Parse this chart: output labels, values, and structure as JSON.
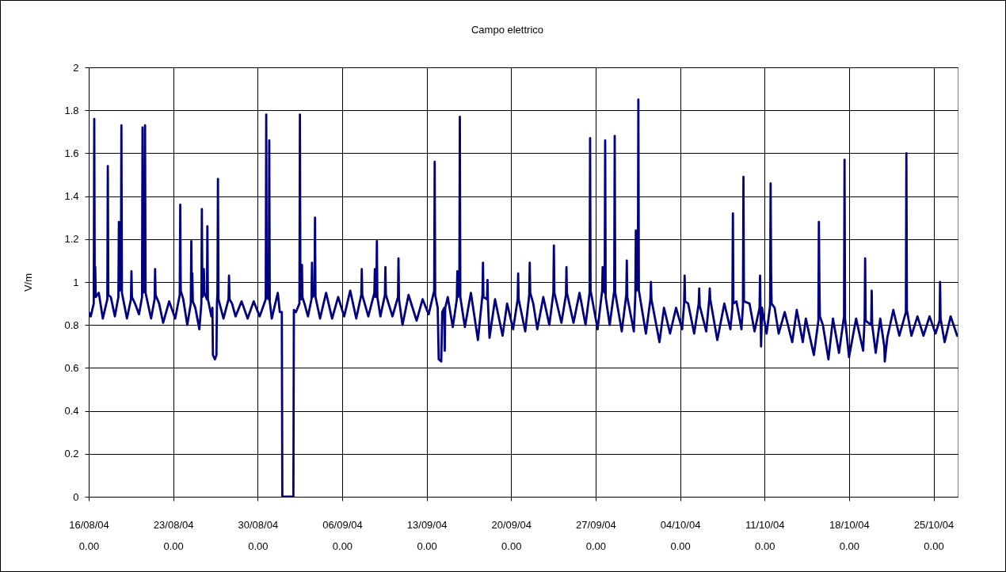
{
  "chart_data": {
    "type": "line",
    "title": "Campo elettrico",
    "ylabel": "V/m",
    "color": "#000080",
    "grid": true,
    "xlim": [
      "--08-16",
      "--10-27"
    ],
    "xticks": [
      {
        "value": "--08-16",
        "label": "16/08/04\n0.00"
      },
      {
        "value": "--08-23",
        "label": "23/08/04\n0.00"
      },
      {
        "value": "--08-30",
        "label": "30/08/04\n0.00"
      },
      {
        "value": "--09-06",
        "label": "06/09/04\n0.00"
      },
      {
        "value": "--09-13",
        "label": "13/09/04\n0.00"
      },
      {
        "value": "--09-20",
        "label": "20/09/04\n0.00"
      },
      {
        "value": "--09-27",
        "label": "27/09/04\n0.00"
      },
      {
        "value": "--10-04",
        "label": "04/10/04\n0.00"
      },
      {
        "value": "--10-11",
        "label": "11/10/04\n0.00"
      },
      {
        "value": "--10-18",
        "label": "18/10/04\n0.00"
      },
      {
        "value": "--10-25",
        "label": "25/10/04\n0.00"
      }
    ],
    "ylim": [
      0,
      2
    ],
    "yticks": [
      0,
      0.2,
      0.4,
      0.6,
      0.8,
      1,
      1.2,
      1.4,
      1.6,
      1.8,
      2
    ],
    "x": [
      "--08-16T00:00",
      "--08-16T04:00",
      "--08-16T10:00",
      "--08-16T11:00",
      "--08-16T12:00",
      "--08-16T13:00",
      "--08-16T14:00",
      "--08-16T20:00",
      "--08-17T04:00",
      "--08-17T13:00",
      "--08-17T14:00",
      "--08-17T15:00",
      "--08-17T20:00",
      "--08-18T04:00",
      "--08-18T11:00",
      "--08-18T12:00",
      "--08-18T13:00",
      "--08-18T16:00",
      "--08-18T17:00",
      "--08-18T18:00",
      "--08-19T04:00",
      "--08-19T12:00",
      "--08-19T13:00",
      "--08-19T14:00",
      "--08-19T20:00",
      "--08-20T04:00",
      "--08-20T10:00",
      "--08-20T11:00",
      "--08-20T12:00",
      "--08-20T15:00",
      "--08-20T16:00",
      "--08-20T17:00",
      "--08-21T04:00",
      "--08-21T11:00",
      "--08-21T12:00",
      "--08-21T13:00",
      "--08-21T20:00",
      "--08-22T04:00",
      "--08-22T16:00",
      "--08-23T04:00",
      "--08-23T13:00",
      "--08-23T14:00",
      "--08-23T15:00",
      "--08-23T20:00",
      "--08-24T04:00",
      "--08-24T11:00",
      "--08-24T12:00",
      "--08-24T13:00",
      "--08-24T14:00",
      "--08-24T15:00",
      "--08-24T20:00",
      "--08-25T04:00",
      "--08-25T08:00",
      "--08-25T09:00",
      "--08-25T10:00",
      "--08-25T12:00",
      "--08-25T13:00",
      "--08-25T14:00",
      "--08-25T19:00",
      "--08-25T20:00",
      "--08-25T21:00",
      "--08-26T04:00",
      "--08-26T06:00",
      "--08-26T07:00",
      "--08-26T11:00",
      "--08-26T14:00",
      "--08-26T15:00",
      "--08-26T16:00",
      "--08-26T17:00",
      "--08-26T18:00",
      "--08-27T04:00",
      "--08-27T14:00",
      "--08-27T15:00",
      "--08-27T16:00",
      "--08-27T21:00",
      "--08-28T04:00",
      "--08-28T16:00",
      "--08-29T04:00",
      "--08-29T16:00",
      "--08-30T04:00",
      "--08-30T16:00",
      "--08-30T17:00",
      "--08-30T18:00",
      "--08-30T22:00",
      "--08-30T23:00",
      "--08-31T00:00",
      "--08-31T04:00",
      "--08-31T16:00",
      "--08-31T20:00",
      "--09-01T00:00",
      "--09-01T01:00",
      "--09-01T23:00",
      "--09-02T00:00",
      "--09-02T04:00",
      "--09-02T11:00",
      "--09-02T12:00",
      "--09-02T13:00",
      "--09-02T15:00",
      "--09-02T16:00",
      "--09-02T17:00",
      "--09-02T21:00",
      "--09-03T04:00",
      "--09-03T11:00",
      "--09-03T12:00",
      "--09-03T13:00",
      "--09-03T17:00",
      "--09-03T18:00",
      "--09-03T19:00",
      "--09-04T04:00",
      "--09-04T16:00",
      "--09-05T04:00",
      "--09-05T16:00",
      "--09-06T04:00",
      "--09-06T16:00",
      "--09-07T04:00",
      "--09-07T14:00",
      "--09-07T15:00",
      "--09-07T16:00",
      "--09-08T04:00",
      "--09-08T16:00",
      "--09-08T17:00",
      "--09-08T18:00",
      "--09-08T20:00",
      "--09-08T21:00",
      "--09-08T22:00",
      "--09-09T04:00",
      "--09-09T13:00",
      "--09-09T14:00",
      "--09-09T15:00",
      "--09-10T04:00",
      "--09-10T15:00",
      "--09-10T16:00",
      "--09-10T17:00",
      "--09-11T00:00",
      "--09-11T12:00",
      "--09-12T04:00",
      "--09-12T16:00",
      "--09-13T04:00",
      "--09-13T15:00",
      "--09-13T16:00",
      "--09-13T17:00",
      "--09-13T22:00",
      "--09-14T00:00",
      "--09-14T05:00",
      "--09-14T07:00",
      "--09-14T11:00",
      "--09-14T12:00",
      "--09-14T13:00",
      "--09-14T18:00",
      "--09-15T04:00",
      "--09-15T12:00",
      "--09-15T13:00",
      "--09-15T14:00",
      "--09-15T17:00",
      "--09-15T18:00",
      "--09-15T19:00",
      "--09-16T04:00",
      "--09-16T16:00",
      "--09-17T06:00",
      "--09-17T15:00",
      "--09-17T16:00",
      "--09-17T17:00",
      "--09-18T00:00",
      "--09-18T01:00",
      "--09-18T02:00",
      "--09-18T05:00",
      "--09-18T16:00",
      "--09-19T07:00",
      "--09-19T16:00",
      "--09-20T04:00",
      "--09-20T13:00",
      "--09-20T14:00",
      "--09-20T15:00",
      "--09-21T04:00",
      "--09-21T12:00",
      "--09-21T13:00",
      "--09-21T14:00",
      "--09-21T20:00",
      "--09-22T04:00",
      "--09-22T16:00",
      "--09-23T04:00",
      "--09-23T12:00",
      "--09-23T13:00",
      "--09-23T14:00",
      "--09-24T04:00",
      "--09-24T13:00",
      "--09-24T14:00",
      "--09-24T15:00",
      "--09-25T04:00",
      "--09-25T16:00",
      "--09-26T04:00",
      "--09-26T12:00",
      "--09-26T13:00",
      "--09-26T14:00",
      "--09-27T04:00",
      "--09-27T13:00",
      "--09-27T14:00",
      "--09-27T15:00",
      "--09-27T18:00",
      "--09-27T19:00",
      "--09-27T20:00",
      "--09-28T04:00",
      "--09-28T13:00",
      "--09-28T14:00",
      "--09-28T15:00",
      "--09-29T04:00",
      "--09-29T13:00",
      "--09-29T14:00",
      "--09-29T15:00",
      "--09-30T04:00",
      "--09-30T07:00",
      "--09-30T08:00",
      "--09-30T09:00",
      "--09-30T12:00",
      "--09-30T13:00",
      "--09-30T14:00",
      "--10-01T04:00",
      "--10-01T13:00",
      "--10-01T14:00",
      "--10-01T15:00",
      "--10-02T07:00",
      "--10-02T16:00",
      "--10-03T04:00",
      "--10-03T16:00",
      "--10-04T04:00",
      "--10-04T08:00",
      "--10-04T09:00",
      "--10-04T10:00",
      "--10-04T16:00",
      "--10-05T04:00",
      "--10-05T13:00",
      "--10-05T14:00",
      "--10-05T15:00",
      "--10-06T04:00",
      "--10-06T10:00",
      "--10-06T11:00",
      "--10-06T12:00",
      "--10-07T02:00",
      "--10-07T16:00",
      "--10-08T04:00",
      "--10-08T08:00",
      "--10-08T09:00",
      "--10-08T10:00",
      "--10-08T16:00",
      "--10-09T02:00",
      "--10-09T05:00",
      "--10-09T06:00",
      "--10-09T07:00",
      "--10-09T18:00",
      "--10-10T04:00",
      "--10-10T14:00",
      "--10-10T15:00",
      "--10-10T16:00",
      "--10-10T17:00",
      "--10-10T19:00",
      "--10-11T04:00",
      "--10-11T11:00",
      "--10-11T12:00",
      "--10-11T13:00",
      "--10-11T14:00",
      "--10-11T20:00",
      "--10-12T04:00",
      "--10-12T16:00",
      "--10-13T07:00",
      "--10-13T16:00",
      "--10-14T04:00",
      "--10-14T10:00",
      "--10-15T02:00",
      "--10-15T11:00",
      "--10-15T12:00",
      "--10-15T13:00",
      "--10-15T14:00",
      "--10-15T20:00",
      "--10-16T07:00",
      "--10-16T16:00",
      "--10-17T04:00",
      "--10-17T14:00",
      "--10-17T15:00",
      "--10-17T16:00",
      "--10-18T00:00",
      "--10-18T14:00",
      "--10-19T04:00",
      "--10-19T07:00",
      "--10-19T08:00",
      "--10-19T09:00",
      "--10-19T20:00",
      "--10-19T21:00",
      "--10-19T22:00",
      "--10-20T05:00",
      "--10-20T14:00",
      "--10-20T22:00",
      "--10-20T23:00",
      "--10-21T04:00",
      "--10-21T16:00",
      "--10-22T04:00",
      "--10-22T17:00",
      "--10-22T18:00",
      "--10-22T19:00",
      "--10-23T04:00",
      "--10-23T16:00",
      "--10-24T04:00",
      "--10-24T16:00",
      "--10-25T04:00",
      "--10-25T12:00",
      "--10-25T13:00",
      "--10-25T14:00",
      "--10-25T22:00",
      "--10-26T10:00",
      "--10-26T23:00"
    ],
    "values": [
      0.86,
      0.84,
      0.9,
      1.76,
      0.95,
      1.07,
      0.93,
      0.95,
      0.83,
      0.92,
      1.54,
      0.94,
      0.93,
      0.84,
      0.93,
      1.28,
      0.96,
      0.97,
      1.73,
      0.95,
      0.83,
      0.92,
      1.05,
      0.93,
      0.9,
      0.85,
      0.93,
      1.72,
      0.95,
      0.96,
      1.73,
      0.95,
      0.83,
      0.92,
      1.06,
      0.94,
      0.9,
      0.81,
      0.91,
      0.83,
      0.94,
      1.36,
      0.96,
      0.92,
      0.8,
      0.9,
      1.19,
      0.92,
      1.04,
      0.91,
      0.88,
      0.78,
      0.9,
      1.34,
      0.93,
      0.94,
      1.06,
      0.95,
      0.92,
      1.26,
      0.92,
      0.84,
      0.88,
      0.66,
      0.64,
      0.66,
      0.9,
      0.95,
      1.48,
      0.92,
      0.83,
      0.92,
      1.03,
      0.92,
      0.9,
      0.84,
      0.91,
      0.83,
      0.91,
      0.84,
      0.92,
      1.78,
      0.93,
      0.92,
      1.66,
      0.91,
      0.83,
      0.95,
      0.86,
      0.86,
      0,
      0,
      0.87,
      0.86,
      0.9,
      1.78,
      0.93,
      0.92,
      1.08,
      0.93,
      0.9,
      0.84,
      0.92,
      1.09,
      0.93,
      0.94,
      1.3,
      0.93,
      0.83,
      0.95,
      0.83,
      0.93,
      0.84,
      0.96,
      0.83,
      0.94,
      1.06,
      0.94,
      0.84,
      0.95,
      1.06,
      0.93,
      0.94,
      1.19,
      0.93,
      0.84,
      0.94,
      1.07,
      0.94,
      0.84,
      0.93,
      1.11,
      0.92,
      0.8,
      0.94,
      0.82,
      0.92,
      0.85,
      0.96,
      1.56,
      0.94,
      0.88,
      0.64,
      0.63,
      0.86,
      0.88,
      0.68,
      0.88,
      0.93,
      0.79,
      0.92,
      1.05,
      0.93,
      0.95,
      1.77,
      0.93,
      0.79,
      0.95,
      0.73,
      0.94,
      1.09,
      0.93,
      0.92,
      1.01,
      0.9,
      0.74,
      0.92,
      0.75,
      0.9,
      0.78,
      0.92,
      1.04,
      0.92,
      0.77,
      0.94,
      1.09,
      0.95,
      0.9,
      0.78,
      0.93,
      0.8,
      0.95,
      1.17,
      0.95,
      0.81,
      0.94,
      1.07,
      0.95,
      0.81,
      0.95,
      0.8,
      0.95,
      1.67,
      0.96,
      0.78,
      0.96,
      1.07,
      0.97,
      0.95,
      1.66,
      0.93,
      0.8,
      0.96,
      1.68,
      0.95,
      0.77,
      0.94,
      1.1,
      0.93,
      0.77,
      0.94,
      1.24,
      0.96,
      0.97,
      1.85,
      0.96,
      0.76,
      0.92,
      1.0,
      0.92,
      0.72,
      0.88,
      0.76,
      0.88,
      0.78,
      0.9,
      1.03,
      0.91,
      0.9,
      0.76,
      0.9,
      0.97,
      0.89,
      0.77,
      0.92,
      0.97,
      0.92,
      0.73,
      0.9,
      0.78,
      0.88,
      1.32,
      0.9,
      0.91,
      0.78,
      0.89,
      1.49,
      0.91,
      0.9,
      0.77,
      0.88,
      1.03,
      0.86,
      0.7,
      0.88,
      0.76,
      0.89,
      1.46,
      1.04,
      0.9,
      0.88,
      0.76,
      0.86,
      0.72,
      0.87,
      0.72,
      0.83,
      0.66,
      0.82,
      1.28,
      1.0,
      0.84,
      0.8,
      0.64,
      0.83,
      0.67,
      0.84,
      1.57,
      0.83,
      0.65,
      0.83,
      0.68,
      0.83,
      1.11,
      0.82,
      0.8,
      0.96,
      0.8,
      0.67,
      0.83,
      0.7,
      0.63,
      0.74,
      0.87,
      0.75,
      0.86,
      1.6,
      0.87,
      0.75,
      0.84,
      0.75,
      0.84,
      0.76,
      0.82,
      1.0,
      0.83,
      0.72,
      0.84,
      0.75
    ]
  }
}
